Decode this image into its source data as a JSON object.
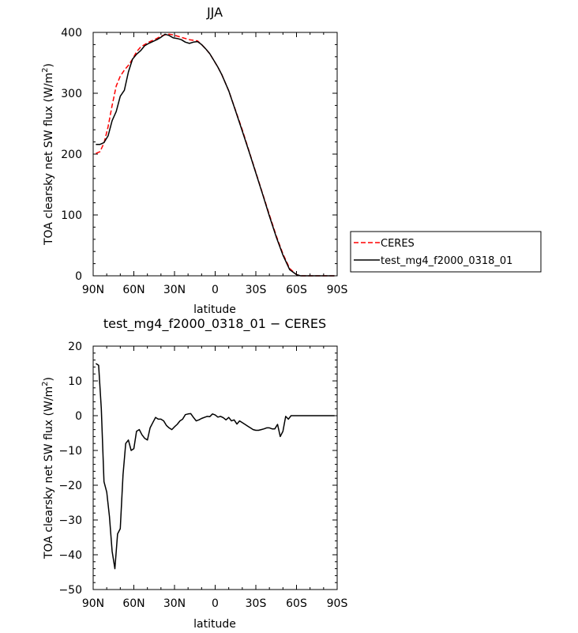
{
  "chart_data": [
    {
      "type": "line",
      "title": "JJA",
      "xlabel": "latitude",
      "ylabel": "TOA clearsky net SW flux (W/m",
      "ylabel_sup": "2",
      "ylabel_end": ")",
      "xlim": [
        90,
        -90
      ],
      "ylim": [
        0,
        400
      ],
      "xticks": [
        90,
        60,
        30,
        0,
        -30,
        -60,
        -90
      ],
      "xtick_labels": [
        "90N",
        "60N",
        "30N",
        "0",
        "30S",
        "60S",
        "90S"
      ],
      "yticks": [
        0,
        100,
        200,
        300,
        400
      ],
      "ytick_labels": [
        "0",
        "100",
        "200",
        "300",
        "400"
      ],
      "legend": {
        "placement": "right",
        "entries": [
          "CERES",
          "test_mg4_f2000_0318_01"
        ]
      },
      "series": [
        {
          "name": "CERES",
          "color": "#ff0000",
          "dash": "dashed",
          "x": [
            88,
            85,
            82,
            79,
            76,
            73,
            70,
            67,
            64,
            61,
            58,
            55,
            52,
            49,
            46,
            43,
            40,
            37,
            34,
            31,
            28,
            25,
            22,
            19,
            16,
            13,
            10,
            7,
            4,
            1,
            -2,
            -5,
            -10,
            -15,
            -20,
            -25,
            -30,
            -35,
            -40,
            -45,
            -50,
            -55,
            -60,
            -63,
            -66,
            -69,
            -72,
            -75,
            -78,
            -81,
            -84,
            -88
          ],
          "y": [
            201,
            204,
            218,
            245,
            280,
            312,
            328,
            338,
            346,
            356,
            368,
            376,
            380,
            384,
            387,
            390,
            394,
            396,
            397,
            396,
            394,
            392,
            390,
            388,
            387,
            386,
            380,
            373,
            365,
            354,
            343,
            330,
            304,
            272,
            240,
            205,
            170,
            135,
            100,
            66,
            36,
            12,
            2,
            0,
            0,
            0,
            0,
            0,
            0,
            0,
            0,
            0
          ]
        },
        {
          "name": "test_mg4_f2000_0318_01",
          "color": "#000000",
          "dash": "solid",
          "x": [
            88,
            85,
            82,
            79,
            76,
            73,
            70,
            67,
            64,
            61,
            58,
            55,
            52,
            49,
            46,
            43,
            40,
            37,
            34,
            31,
            28,
            25,
            22,
            19,
            16,
            13,
            10,
            7,
            4,
            1,
            -2,
            -5,
            -10,
            -15,
            -20,
            -25,
            -30,
            -35,
            -40,
            -45,
            -50,
            -55,
            -60,
            -63,
            -66,
            -69,
            -72,
            -75,
            -78,
            -81,
            -84,
            -88
          ],
          "y": [
            216,
            216,
            219,
            230,
            255,
            270,
            295,
            305,
            335,
            356,
            364,
            370,
            378,
            382,
            385,
            388,
            392,
            397,
            395,
            391,
            390,
            388,
            384,
            382,
            384,
            385,
            380,
            373,
            365,
            354,
            343,
            330,
            304,
            271,
            238,
            204,
            169,
            134,
            98,
            64,
            34,
            10,
            2,
            0,
            0,
            0,
            0,
            0,
            0,
            0,
            0,
            0
          ]
        }
      ]
    },
    {
      "type": "line",
      "title": "test_mg4_f2000_0318_01 − CERES",
      "xlabel": "latitude",
      "ylabel": "TOA clearsky net SW flux (W/m",
      "ylabel_sup": "2",
      "ylabel_end": ")",
      "xlim": [
        90,
        -90
      ],
      "ylim": [
        -50,
        20
      ],
      "xticks": [
        90,
        60,
        30,
        0,
        -30,
        -60,
        -90
      ],
      "xtick_labels": [
        "90N",
        "60N",
        "30N",
        "0",
        "30S",
        "60S",
        "90S"
      ],
      "yticks": [
        -50,
        -40,
        -30,
        -20,
        -10,
        0,
        10,
        20
      ],
      "ytick_labels": [
        "−50",
        "−40",
        "−30",
        "−20",
        "−10",
        "0",
        "10",
        "20"
      ],
      "series": [
        {
          "color": "#000000",
          "dash": "solid",
          "x": [
            88,
            86,
            84,
            82,
            80,
            78,
            76,
            74,
            72,
            70,
            68,
            66,
            64,
            62,
            60,
            58,
            56,
            54,
            52,
            50,
            48,
            46,
            44,
            42,
            40,
            38,
            36,
            34,
            32,
            30,
            28,
            26,
            24,
            22,
            20,
            18,
            16,
            14,
            12,
            10,
            8,
            6,
            4,
            2,
            0,
            -2,
            -4,
            -6,
            -8,
            -10,
            -12,
            -14,
            -16,
            -18,
            -20,
            -22,
            -24,
            -26,
            -28,
            -30,
            -32,
            -34,
            -36,
            -38,
            -40,
            -42,
            -44,
            -46,
            -48,
            -50,
            -52,
            -54,
            -56,
            -58,
            -60,
            -62,
            -64,
            -66,
            -68,
            -70,
            -72,
            -74,
            -76,
            -78,
            -80,
            -82,
            -84,
            -86,
            -88
          ],
          "y": [
            15,
            14.5,
            2,
            -19,
            -22,
            -29,
            -39,
            -44,
            -34,
            -32.5,
            -17,
            -8,
            -7,
            -10,
            -9.5,
            -4.5,
            -4,
            -5.5,
            -6.5,
            -7,
            -3.5,
            -2,
            -0.5,
            -1,
            -1,
            -1.5,
            -2.8,
            -3.5,
            -4,
            -3.2,
            -2.5,
            -1.5,
            -1,
            0.3,
            0.5,
            0.6,
            -0.5,
            -1.5,
            -1.2,
            -0.8,
            -0.5,
            -0.2,
            -0.3,
            0.5,
            0.2,
            -0.4,
            -0.2,
            -0.6,
            -1.2,
            -0.5,
            -1.5,
            -1.2,
            -2.4,
            -1.5,
            -2,
            -2.5,
            -3,
            -3.5,
            -4,
            -4.2,
            -4.2,
            -4,
            -3.8,
            -3.5,
            -3.5,
            -3.8,
            -3.8,
            -2.5,
            -6,
            -4.5,
            -0.2,
            -1,
            0,
            0,
            0,
            0,
            0,
            0,
            0,
            0,
            0,
            0,
            0,
            0,
            0,
            0,
            0,
            0,
            0
          ]
        }
      ]
    }
  ]
}
